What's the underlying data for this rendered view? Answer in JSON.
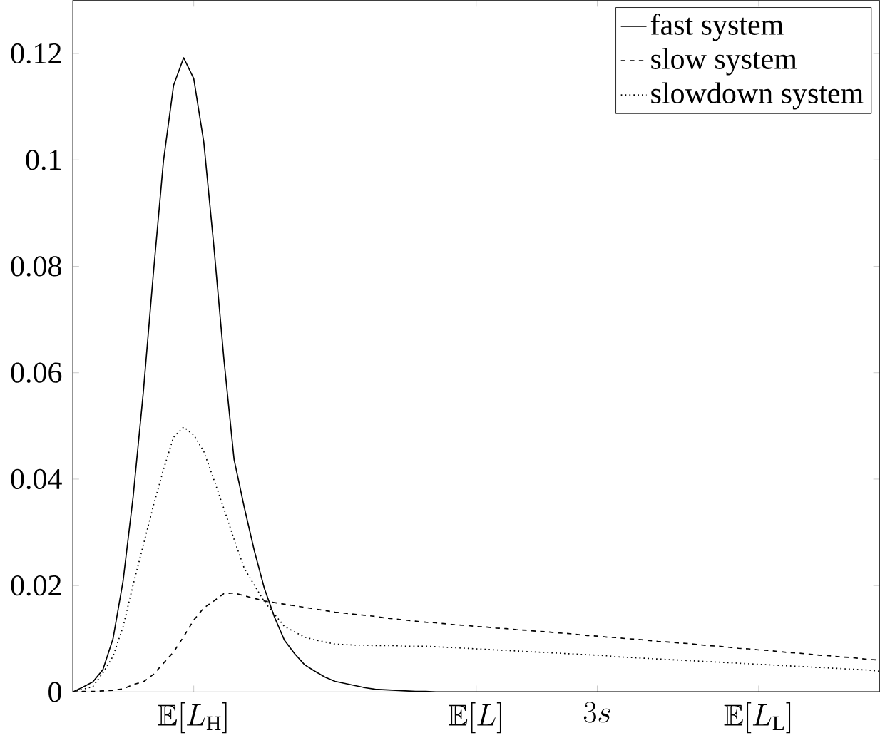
{
  "chart_data": {
    "type": "line",
    "ylim": [
      0,
      0.13
    ],
    "categories": [
      null,
      null,
      null,
      null,
      null,
      null,
      null,
      null,
      null,
      null,
      null,
      null,
      "\\mathbb{E}[L_{\\mathrm{H}}]",
      null,
      null,
      null,
      null,
      null,
      null,
      null,
      null,
      null,
      null,
      null,
      null,
      null,
      null,
      null,
      null,
      null,
      null,
      null,
      null,
      null,
      null,
      null,
      null,
      null,
      null,
      null,
      "\\mathbb{E}[L]",
      null,
      null,
      null,
      null,
      null,
      null,
      null,
      null,
      null,
      null,
      null,
      "3s",
      null,
      null,
      null,
      null,
      null,
      null,
      null,
      null,
      null,
      null,
      null,
      null,
      null,
      null,
      null,
      "\\mathbb{E}[L_{\\mathrm{L}}]",
      null,
      null,
      null,
      null,
      null,
      null,
      null,
      null,
      null,
      null,
      null,
      null
    ],
    "yticks": [
      0,
      0.02,
      0.04,
      0.06,
      0.08,
      0.1,
      0.12
    ],
    "grid": false,
    "legend": "top right",
    "marker": "none",
    "series": [
      {
        "name": "fast system",
        "color": "#000000",
        "line_style": "solid",
        "values": [
          0,
          0.0009,
          0.0019,
          0.0042,
          0.01,
          0.0209,
          0.0368,
          0.0563,
          0.0787,
          0.0998,
          0.114,
          0.1192,
          0.1153,
          0.1033,
          0.0837,
          0.0624,
          0.0437,
          0.0348,
          0.0266,
          0.0195,
          0.0141,
          0.0097,
          0.0072,
          0.0051,
          0.0039,
          0.0028,
          0.002,
          0.0016,
          0.0012,
          0.0008,
          0.0005,
          0.0004,
          0.0003,
          0.0002,
          0.0001,
          0.0001,
          0,
          0,
          0,
          0,
          0,
          0,
          0,
          0,
          0,
          0,
          0,
          0,
          0,
          0,
          0,
          0,
          0,
          0,
          0,
          0,
          0,
          0,
          0,
          0,
          0,
          0,
          0,
          0,
          0,
          0,
          0,
          0,
          0,
          0,
          0,
          0,
          0,
          0,
          0,
          0,
          0,
          0,
          0,
          0,
          0
        ]
      },
      {
        "name": "slow system",
        "color": "#000000",
        "line_style": "dashed",
        "values": [
          0,
          0.0001,
          0.0001,
          0.0002,
          0.0003,
          0.0006,
          0.0014,
          0.0019,
          0.0033,
          0.0054,
          0.0075,
          0.0104,
          0.0135,
          0.0158,
          0.0171,
          0.0185,
          0.0186,
          0.0181,
          0.0176,
          0.0171,
          0.0168,
          0.0165,
          0.0162,
          0.0159,
          0.0156,
          0.0153,
          0.015,
          0.0148,
          0.0146,
          0.0144,
          0.0142,
          0.0139,
          0.0137,
          0.0135,
          0.0133,
          0.0131,
          0.013,
          0.0128,
          0.0126,
          0.0125,
          0.0123,
          0.0122,
          0.012,
          0.0119,
          0.0117,
          0.0116,
          0.0114,
          0.0113,
          0.0111,
          0.011,
          0.0108,
          0.0106,
          0.0105,
          0.0103,
          0.0102,
          0.01,
          0.0099,
          0.0097,
          0.0095,
          0.0094,
          0.0092,
          0.0091,
          0.0089,
          0.0087,
          0.0086,
          0.0084,
          0.0082,
          0.0081,
          0.0079,
          0.0078,
          0.0076,
          0.0074,
          0.0073,
          0.0071,
          0.0069,
          0.0068,
          0.0066,
          0.0065,
          0.0063,
          0.0061,
          0.006
        ]
      },
      {
        "name": "slowdown system",
        "color": "#000000",
        "line_style": "dotted",
        "values": [
          0,
          0.0005,
          0.001,
          0.0036,
          0.0067,
          0.0123,
          0.0202,
          0.0276,
          0.035,
          0.0418,
          0.0479,
          0.0498,
          0.0483,
          0.0452,
          0.0399,
          0.0344,
          0.0287,
          0.0233,
          0.0201,
          0.017,
          0.0146,
          0.0123,
          0.0113,
          0.0103,
          0.0098,
          0.0094,
          0.009,
          0.0089,
          0.0088,
          0.0088,
          0.0087,
          0.0087,
          0.0087,
          0.0086,
          0.0086,
          0.0086,
          0.0085,
          0.0084,
          0.0083,
          0.0082,
          0.0081,
          0.008,
          0.0079,
          0.0078,
          0.0077,
          0.0076,
          0.0075,
          0.0074,
          0.0073,
          0.0072,
          0.0071,
          0.007,
          0.0069,
          0.0068,
          0.0066,
          0.0065,
          0.0064,
          0.0063,
          0.0062,
          0.0061,
          0.006,
          0.0059,
          0.0058,
          0.0057,
          0.0056,
          0.0055,
          0.0054,
          0.0053,
          0.0052,
          0.0051,
          0.005,
          0.0049,
          0.0048,
          0.0047,
          0.0046,
          0.0045,
          0.0044,
          0.0043,
          0.0042,
          0.0041,
          0.0039
        ]
      }
    ]
  }
}
